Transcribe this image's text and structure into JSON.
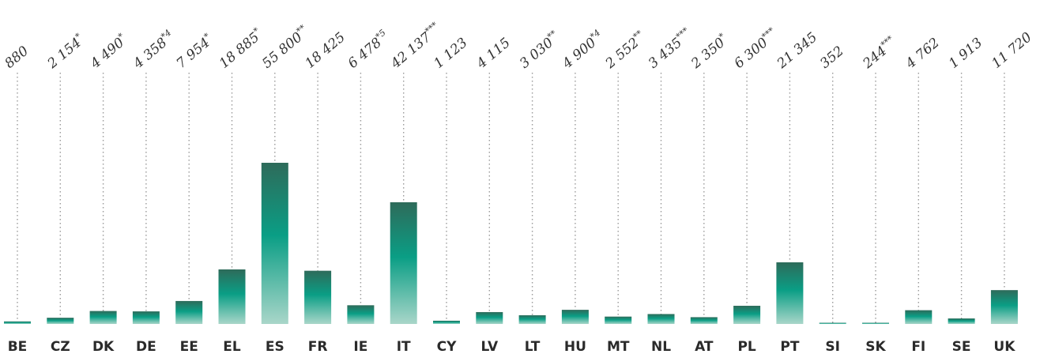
{
  "chart_data": {
    "type": "bar",
    "categories": [
      "BE",
      "CZ",
      "DK",
      "DE",
      "EE",
      "EL",
      "ES",
      "FR",
      "IE",
      "IT",
      "CY",
      "LV",
      "LT",
      "HU",
      "MT",
      "NL",
      "AT",
      "PL",
      "PT",
      "SI",
      "SK",
      "FI",
      "SE",
      "UK"
    ],
    "values": [
      880,
      2154,
      4490,
      4358,
      7954,
      18885,
      55800,
      18425,
      6478,
      42137,
      1123,
      4115,
      3030,
      4900,
      2552,
      3435,
      2350,
      6300,
      21345,
      352,
      244,
      4762,
      1913,
      11720
    ],
    "value_labels": [
      {
        "num": "880",
        "mark": ""
      },
      {
        "num": "2 154",
        "mark": "*"
      },
      {
        "num": "4 490",
        "mark": "*"
      },
      {
        "num": "4 358",
        "mark": "*4"
      },
      {
        "num": "7 954",
        "mark": "*"
      },
      {
        "num": "18 885",
        "mark": "*"
      },
      {
        "num": "55 800",
        "mark": "**"
      },
      {
        "num": "18 425",
        "mark": ""
      },
      {
        "num": "6 478",
        "mark": "*5"
      },
      {
        "num": "42 137",
        "mark": "***"
      },
      {
        "num": "1 123",
        "mark": ""
      },
      {
        "num": "4 115",
        "mark": ""
      },
      {
        "num": "3 030",
        "mark": "**"
      },
      {
        "num": "4 900",
        "mark": "*4"
      },
      {
        "num": "2 552",
        "mark": "**"
      },
      {
        "num": "3 435",
        "mark": "***"
      },
      {
        "num": "2 350",
        "mark": "*"
      },
      {
        "num": "6 300",
        "mark": "***"
      },
      {
        "num": "21 345",
        "mark": ""
      },
      {
        "num": "352",
        "mark": ""
      },
      {
        "num": "244",
        "mark": "***"
      },
      {
        "num": "4 762",
        "mark": ""
      },
      {
        "num": "1 913",
        "mark": ""
      },
      {
        "num": "11 720",
        "mark": ""
      }
    ],
    "title": "",
    "xlabel": "",
    "ylabel": "",
    "ylim": [
      0,
      60000
    ],
    "grid": false,
    "legend": "none",
    "colors": {
      "bar_top": "#2e6b5a",
      "bar_mid": "#0a9e85",
      "bar_bottom": "#a9d6c9",
      "guide": "#9a9a9a"
    }
  }
}
